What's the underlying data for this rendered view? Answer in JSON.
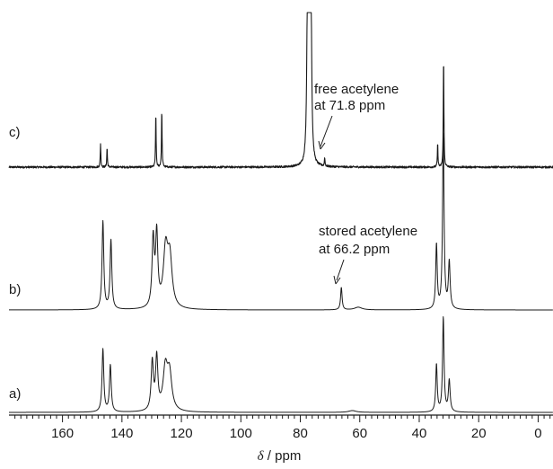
{
  "chart_data": {
    "type": "line",
    "x_axis": {
      "label_symbol": "δ",
      "label_unit": " / ppm",
      "range": [
        178,
        -5
      ],
      "reversed": true,
      "major_ticks": [
        160,
        140,
        120,
        100,
        80,
        60,
        40,
        20,
        0
      ],
      "major_tick_labels": [
        "160",
        "140",
        "120",
        "100",
        "80",
        "60",
        "40",
        "20",
        "0"
      ],
      "minor_tick_step": 2
    },
    "series": [
      {
        "name": "c)",
        "noise": 0.5,
        "baseline_offset": 0,
        "peaks": [
          {
            "x": 147.2,
            "height": 26,
            "width": 0.12
          },
          {
            "x": 145.0,
            "height": 22,
            "width": 0.12
          },
          {
            "x": 128.6,
            "height": 60,
            "width": 0.12
          },
          {
            "x": 126.6,
            "height": 64,
            "width": 0.12
          },
          {
            "x": 77.6,
            "height": 170,
            "width": 0.28
          },
          {
            "x": 77.0,
            "height": 170,
            "width": 0.28
          },
          {
            "x": 76.4,
            "height": 170,
            "width": 0.28
          },
          {
            "x": 71.8,
            "height": 10,
            "width": 0.12
          },
          {
            "x": 33.8,
            "height": 26,
            "width": 0.12
          },
          {
            "x": 31.8,
            "height": 125,
            "width": 0.12
          }
        ]
      },
      {
        "name": "b)",
        "noise": 0,
        "baseline_offset": 0,
        "peaks": [
          {
            "x": 146.4,
            "height": 98,
            "width": 0.35
          },
          {
            "x": 143.7,
            "height": 77,
            "width": 0.35
          },
          {
            "x": 129.5,
            "height": 75,
            "width": 0.45
          },
          {
            "x": 128.3,
            "height": 79,
            "width": 0.45
          },
          {
            "x": 125.3,
            "height": 63,
            "width": 0.9
          },
          {
            "x": 123.9,
            "height": 53,
            "width": 0.9
          },
          {
            "x": 66.2,
            "height": 25,
            "width": 0.3
          },
          {
            "x": 60.5,
            "height": 3,
            "width": 1.5
          },
          {
            "x": 34.2,
            "height": 72,
            "width": 0.3
          },
          {
            "x": 31.9,
            "height": 195,
            "width": 0.3
          },
          {
            "x": 29.9,
            "height": 52,
            "width": 0.35
          }
        ]
      },
      {
        "name": "a)",
        "noise": 0,
        "baseline_offset": 0,
        "peaks": [
          {
            "x": 146.4,
            "height": 70,
            "width": 0.35
          },
          {
            "x": 143.9,
            "height": 52,
            "width": 0.35
          },
          {
            "x": 129.8,
            "height": 54,
            "width": 0.45
          },
          {
            "x": 128.3,
            "height": 58,
            "width": 0.45
          },
          {
            "x": 125.4,
            "height": 46,
            "width": 0.9
          },
          {
            "x": 124.0,
            "height": 40,
            "width": 0.9
          },
          {
            "x": 62.5,
            "height": 2,
            "width": 1.5
          },
          {
            "x": 34.2,
            "height": 53,
            "width": 0.3
          },
          {
            "x": 31.9,
            "height": 105,
            "width": 0.3
          },
          {
            "x": 29.9,
            "height": 35,
            "width": 0.35
          }
        ]
      }
    ],
    "annotations": [
      {
        "line1": "free acetylene",
        "line2": "at 71.8 ppm",
        "series": "c)",
        "x": 71.8
      },
      {
        "line1": "stored acetylene",
        "line2": "at 66.2 ppm",
        "series": "b)",
        "x": 66.2
      }
    ],
    "grid": false,
    "legend": "none"
  }
}
